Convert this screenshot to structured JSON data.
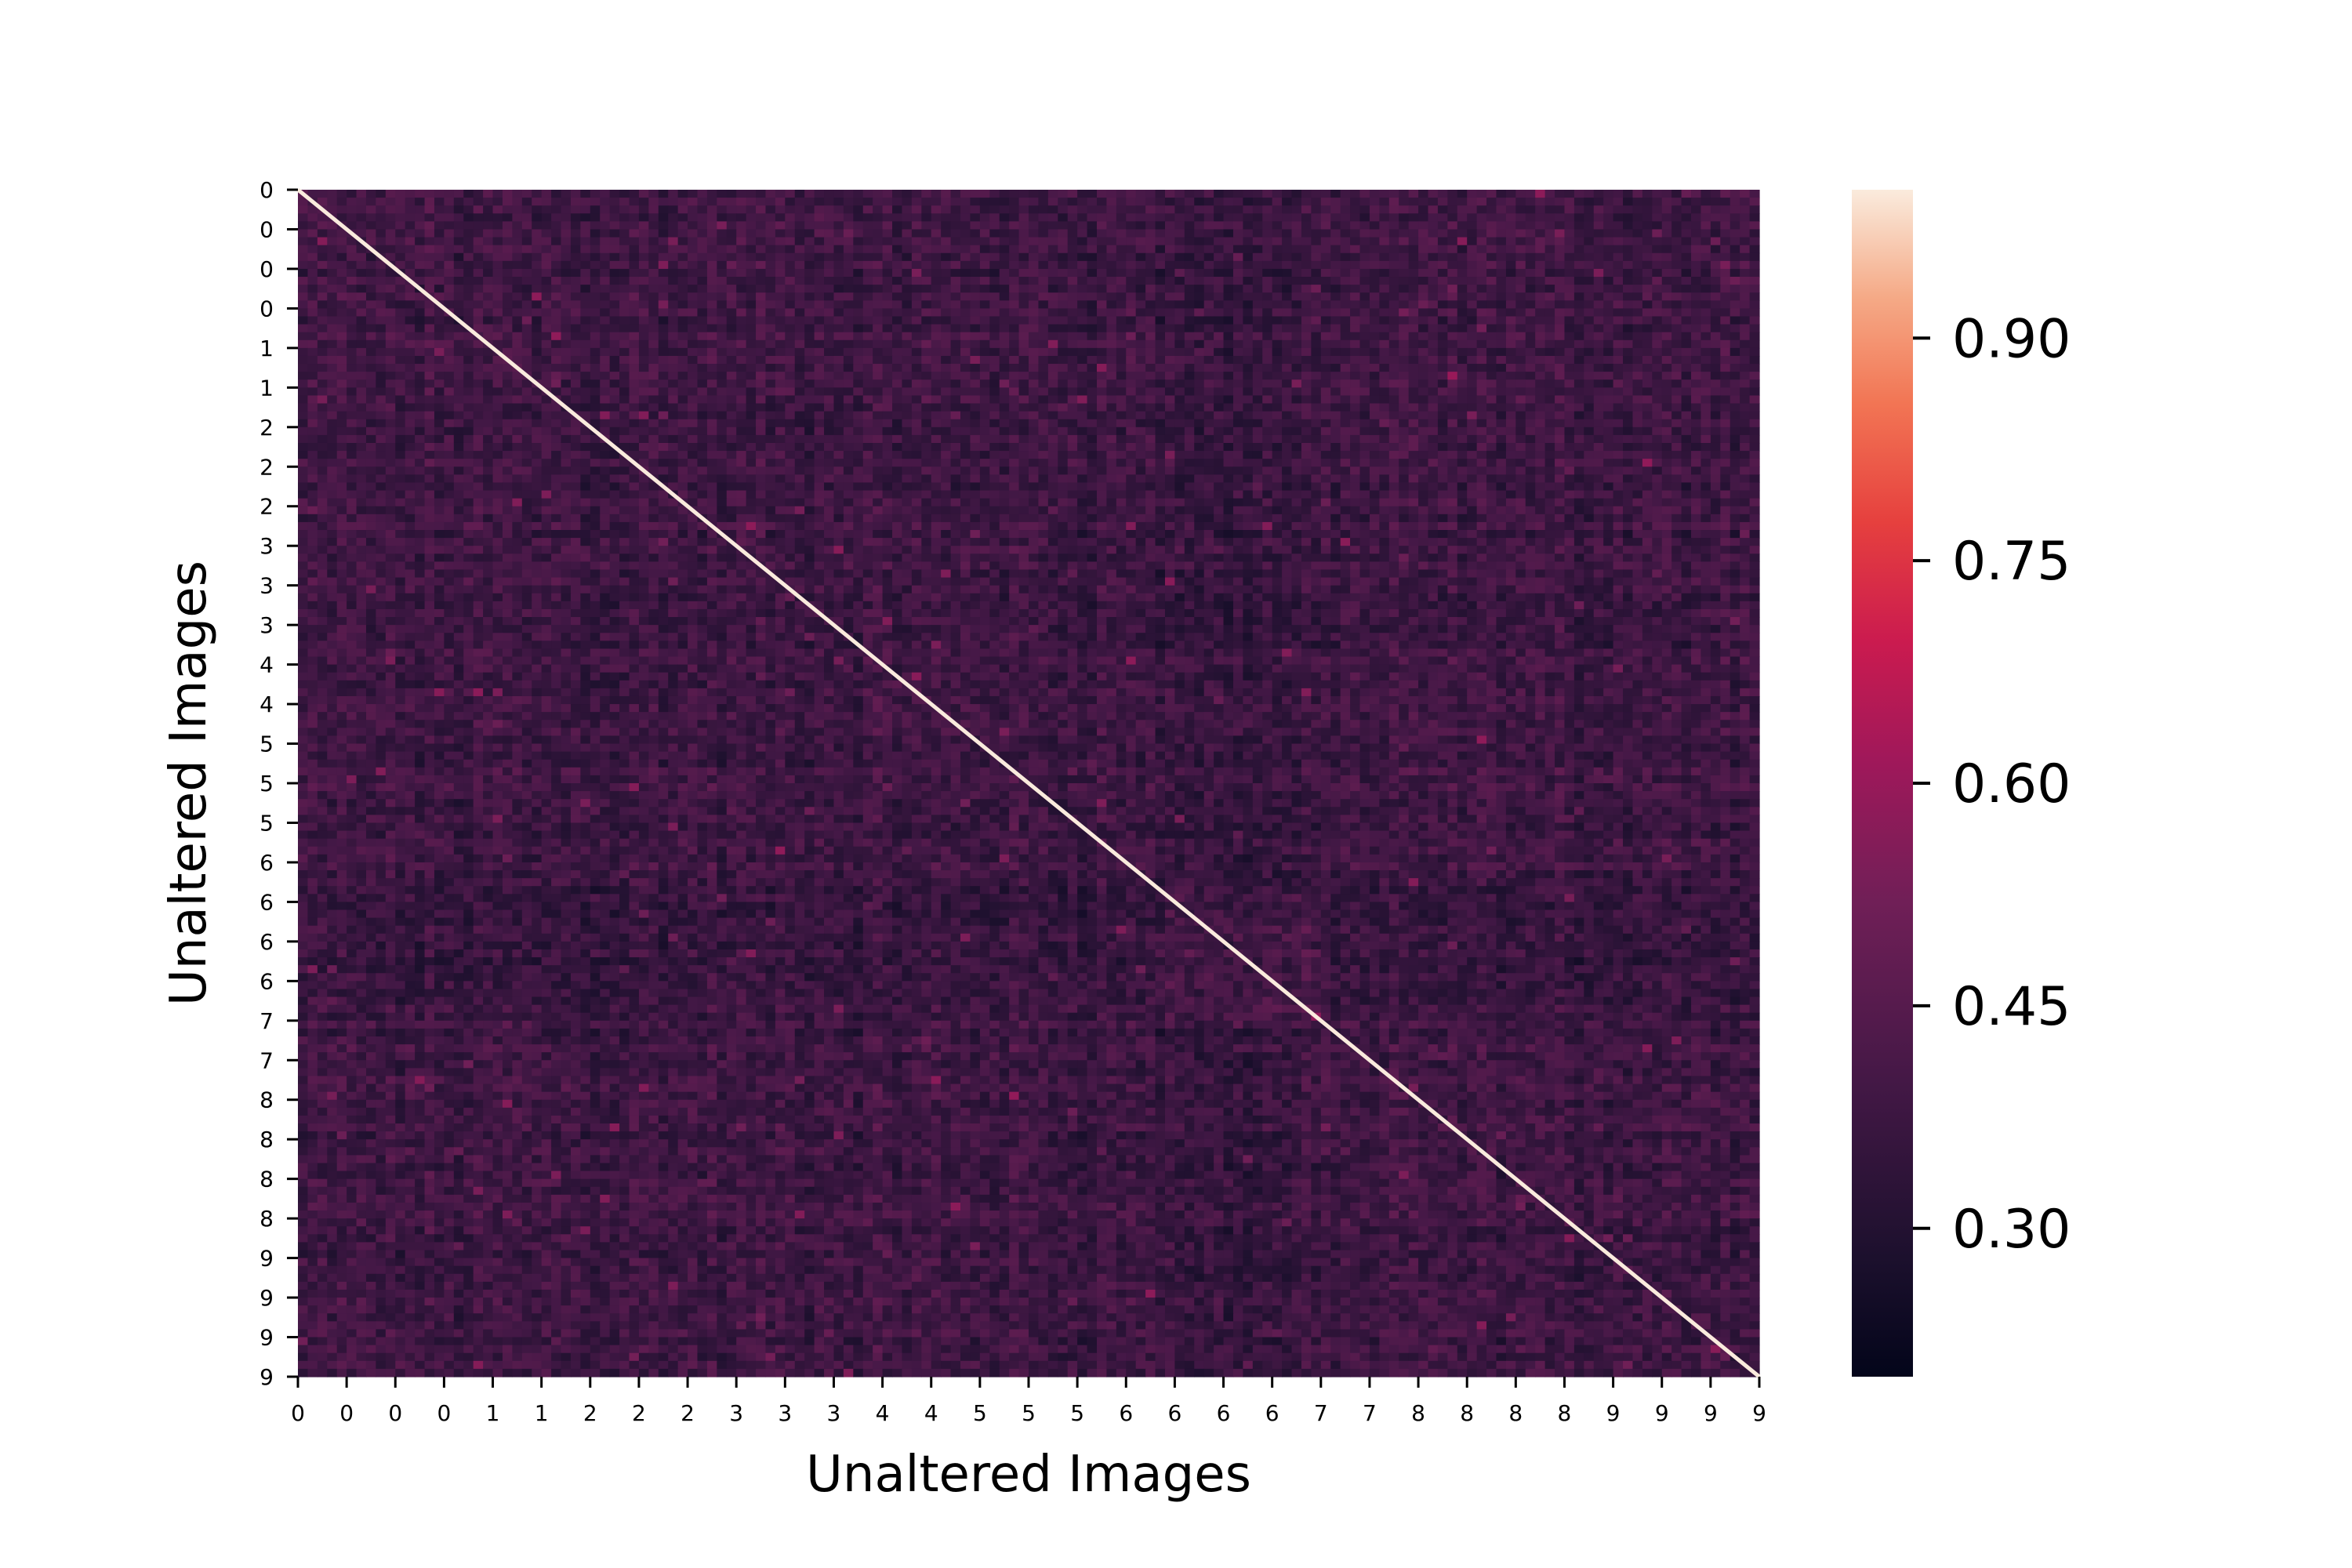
{
  "chart_data": {
    "type": "heatmap",
    "title": "",
    "xlabel": "Unaltered Images",
    "ylabel": "Unaltered Images",
    "x_tick_labels": [
      "0",
      "0",
      "0",
      "0",
      "1",
      "1",
      "2",
      "2",
      "2",
      "3",
      "3",
      "3",
      "4",
      "4",
      "5",
      "5",
      "5",
      "6",
      "6",
      "6",
      "6",
      "7",
      "7",
      "8",
      "8",
      "8",
      "8",
      "9",
      "9",
      "9",
      "9"
    ],
    "y_tick_labels": [
      "0",
      "0",
      "0",
      "0",
      "1",
      "1",
      "2",
      "2",
      "2",
      "3",
      "3",
      "3",
      "4",
      "4",
      "5",
      "5",
      "5",
      "6",
      "6",
      "6",
      "6",
      "7",
      "7",
      "8",
      "8",
      "8",
      "8",
      "9",
      "9",
      "9",
      "9"
    ],
    "matrix_size": 300,
    "diagonal_value": 1.0,
    "value_range": [
      0.2,
      1.0
    ],
    "typical_off_diagonal_range": [
      0.25,
      0.6
    ],
    "colormap": "rocket",
    "colorbar": {
      "ticks": [
        0.3,
        0.45,
        0.6,
        0.75,
        0.9
      ],
      "tick_labels": [
        "0.30",
        "0.45",
        "0.60",
        "0.75",
        "0.90"
      ],
      "placement": "right"
    },
    "grid": false,
    "legend": "none"
  }
}
